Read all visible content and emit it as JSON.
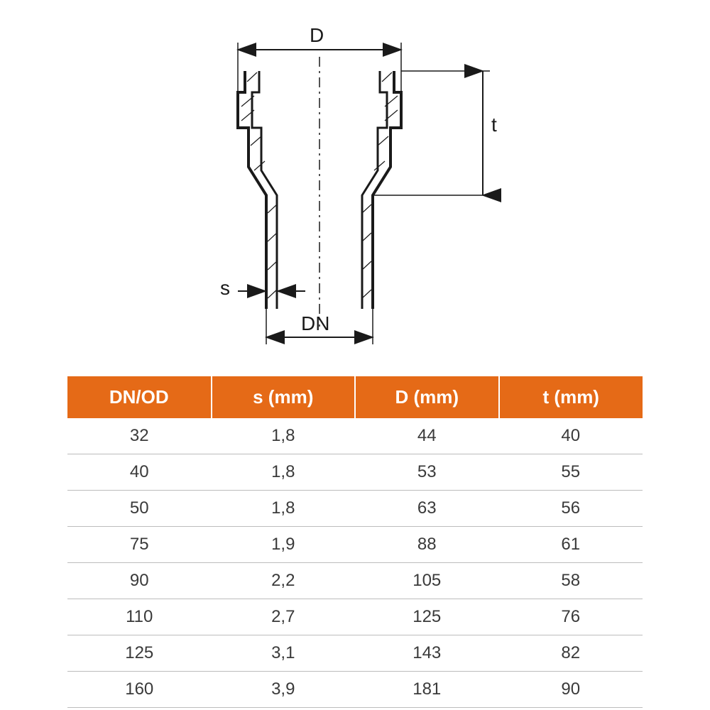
{
  "diagram": {
    "labels": {
      "D": "D",
      "t": "t",
      "s": "s",
      "DN": "DN"
    },
    "colors": {
      "stroke": "#1a1a1a",
      "text": "#1a1a1a",
      "fill_light": "#e8e8e8"
    },
    "stroke_width_outline": 4,
    "stroke_width_dim": 2
  },
  "table": {
    "header_bg": "#e56a17",
    "header_fg": "#ffffff",
    "row_fg": "#3a3a3a",
    "row_border": "#bcbcbc",
    "header_fontsize": 26,
    "cell_fontsize": 24,
    "columns": [
      "DN/OD",
      "s (mm)",
      "D (mm)",
      "t (mm)"
    ],
    "rows": [
      [
        "32",
        "1,8",
        "44",
        "40"
      ],
      [
        "40",
        "1,8",
        "53",
        "55"
      ],
      [
        "50",
        "1,8",
        "63",
        "56"
      ],
      [
        "75",
        "1,9",
        "88",
        "61"
      ],
      [
        "90",
        "2,2",
        "105",
        "58"
      ],
      [
        "110",
        "2,7",
        "125",
        "76"
      ],
      [
        "125",
        "3,1",
        "143",
        "82"
      ],
      [
        "160",
        "3,9",
        "181",
        "90"
      ]
    ]
  }
}
